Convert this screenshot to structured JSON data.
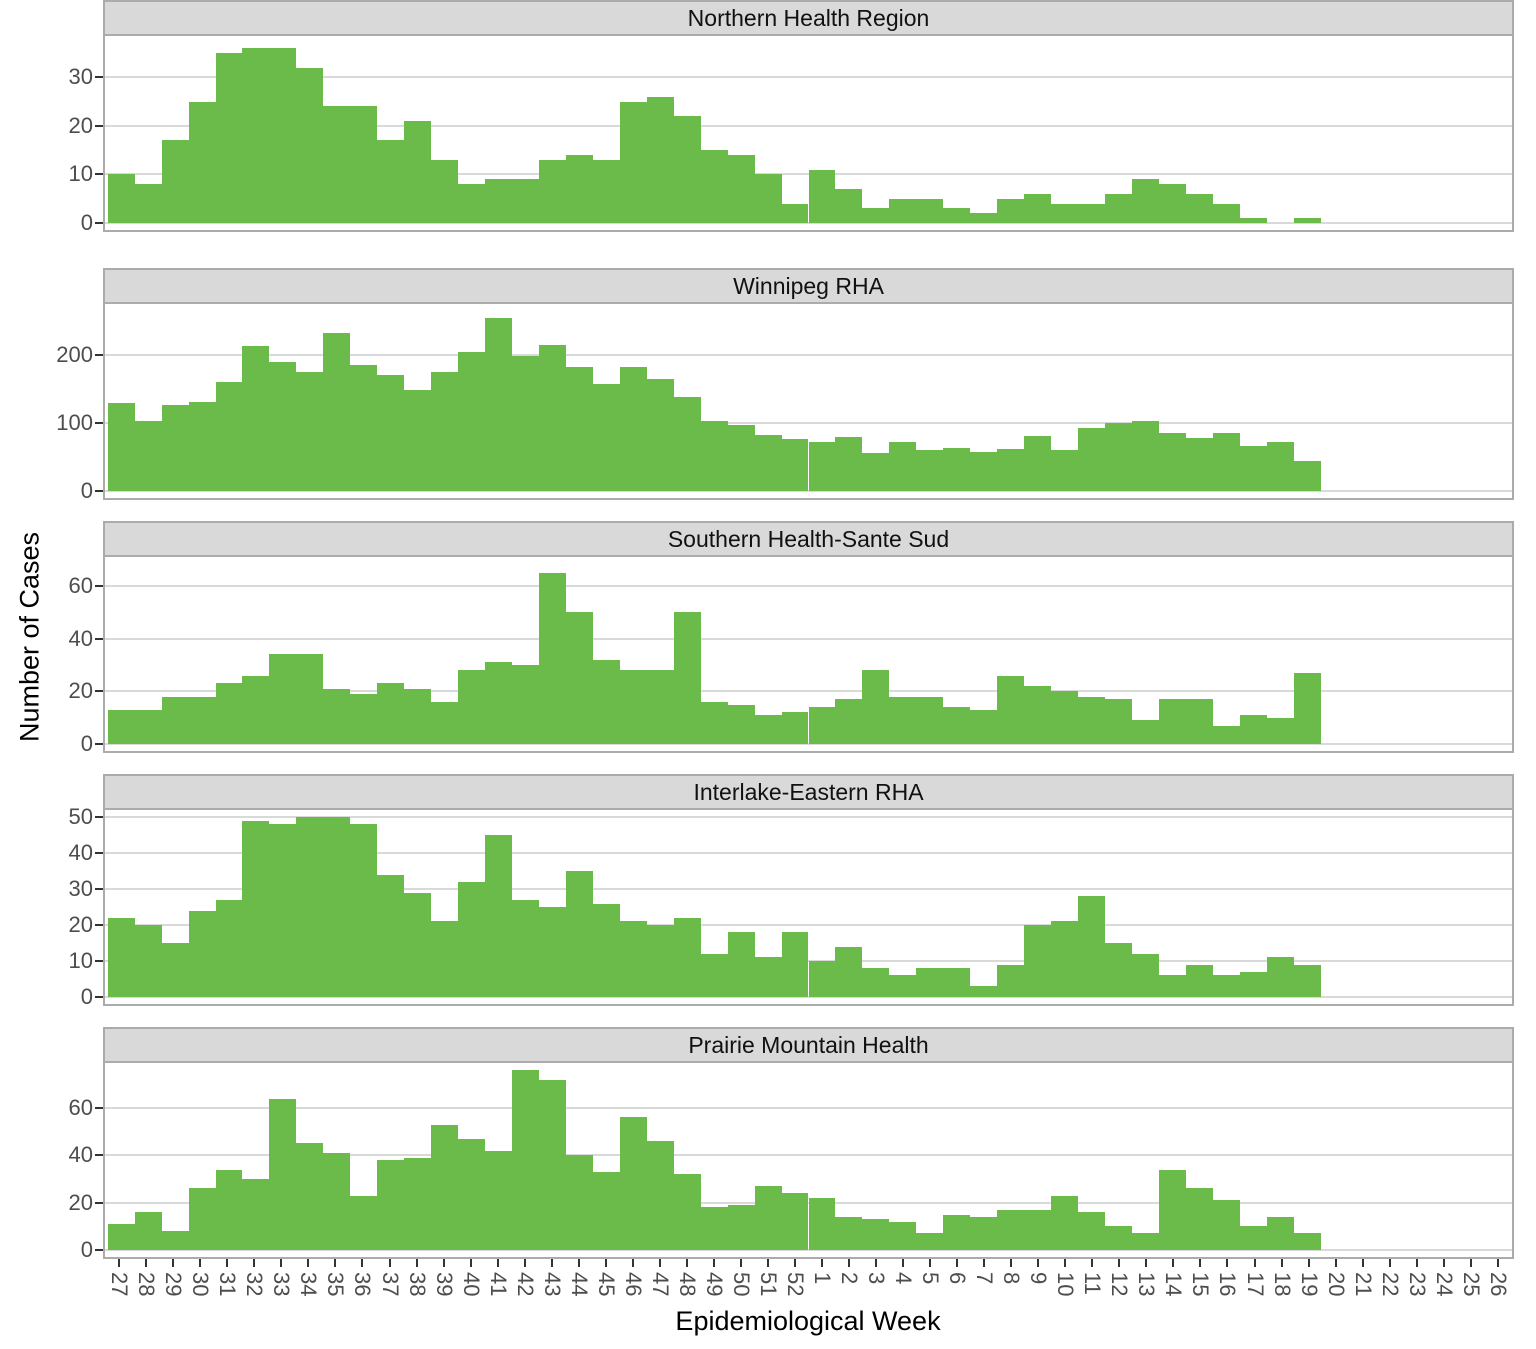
{
  "chart_data": {
    "type": "bar",
    "title": "",
    "xlabel": "Epidemiological Week",
    "ylabel": "Number of Cases",
    "legend": "none",
    "grid": "major-horizontal",
    "x_labels": [
      "27",
      "28",
      "29",
      "30",
      "31",
      "32",
      "33",
      "34",
      "35",
      "36",
      "37",
      "38",
      "39",
      "40",
      "41",
      "42",
      "43",
      "44",
      "45",
      "46",
      "47",
      "48",
      "49",
      "50",
      "51",
      "52",
      "1",
      "2",
      "3",
      "4",
      "5",
      "6",
      "7",
      "8",
      "9",
      "10",
      "11",
      "12",
      "13",
      "14",
      "15",
      "16",
      "17",
      "18",
      "19",
      "20",
      "21",
      "22",
      "23",
      "24",
      "25",
      "26"
    ],
    "data_week_range": "bars span week 27 through week 19; weeks 20-26 have no bars",
    "facets": [
      {
        "title": "Winnipeg RHA",
        "y_ticks": [
          0,
          100,
          200
        ],
        "ylim": [
          0,
          275
        ],
        "values": [
          130,
          103,
          127,
          131,
          160,
          213,
          190,
          175,
          233,
          185,
          170,
          148,
          175,
          205,
          255,
          198,
          215,
          182,
          158,
          183,
          165,
          138,
          103,
          97,
          82,
          77,
          72,
          79,
          56,
          72,
          60,
          63,
          57,
          62,
          81,
          60,
          92,
          100,
          103,
          85,
          78,
          86,
          66,
          72,
          44
        ]
      },
      {
        "title": "Southern Health-Sante Sud",
        "y_ticks": [
          0,
          20,
          40,
          60
        ],
        "ylim": [
          0,
          71
        ],
        "values": [
          13,
          13,
          18,
          18,
          23,
          26,
          34,
          34,
          21,
          19,
          23,
          21,
          16,
          28,
          31,
          30,
          65,
          50,
          32,
          28,
          28,
          50,
          16,
          15,
          11,
          12,
          14,
          17,
          28,
          18,
          18,
          14,
          13,
          26,
          22,
          20,
          18,
          17,
          9,
          17,
          17,
          7,
          11,
          10,
          27
        ]
      },
      {
        "title": "Interlake-Eastern RHA",
        "y_ticks": [
          0,
          10,
          20,
          30,
          40,
          50
        ],
        "ylim": [
          0,
          52
        ],
        "values": [
          22,
          20,
          15,
          24,
          27,
          49,
          48,
          50,
          50,
          48,
          34,
          29,
          21,
          32,
          45,
          27,
          25,
          35,
          26,
          21,
          20,
          22,
          12,
          18,
          11,
          18,
          10,
          14,
          8,
          6,
          8,
          8,
          3,
          9,
          20,
          21,
          28,
          15,
          12,
          6,
          9,
          6,
          7,
          11,
          9
        ]
      },
      {
        "title": "Prairie Mountain Health",
        "y_ticks": [
          0,
          20,
          40,
          60
        ],
        "ylim": [
          0,
          79
        ],
        "values": [
          11,
          16,
          8,
          26,
          34,
          30,
          64,
          45,
          41,
          23,
          38,
          39,
          53,
          47,
          42,
          76,
          72,
          40,
          33,
          56,
          46,
          32,
          18,
          19,
          27,
          24,
          22,
          14,
          13,
          12,
          7,
          15,
          14,
          17,
          17,
          23,
          16,
          10,
          7,
          34,
          26,
          21,
          10,
          14,
          7
        ]
      },
      {
        "title": "Northern Health Region",
        "y_ticks": [
          0,
          10,
          20,
          30
        ],
        "ylim": [
          0,
          38.5
        ],
        "values": [
          10,
          8,
          17,
          25,
          35,
          36,
          36,
          32,
          24,
          24,
          17,
          21,
          13,
          8,
          9,
          9,
          13,
          14,
          13,
          25,
          26,
          22,
          15,
          14,
          10,
          4,
          11,
          7,
          3,
          5,
          5,
          3,
          2,
          5,
          6,
          4,
          4,
          6,
          9,
          8,
          6,
          4,
          1,
          0,
          1
        ]
      }
    ],
    "colors": {
      "bar": "#6abb4a",
      "strip_background": "#d9d9d9",
      "gridline": "#d9d9d9",
      "panel_border": "#ababab",
      "tick_label": "#4d4d4d",
      "axis_title": "#000000"
    }
  }
}
